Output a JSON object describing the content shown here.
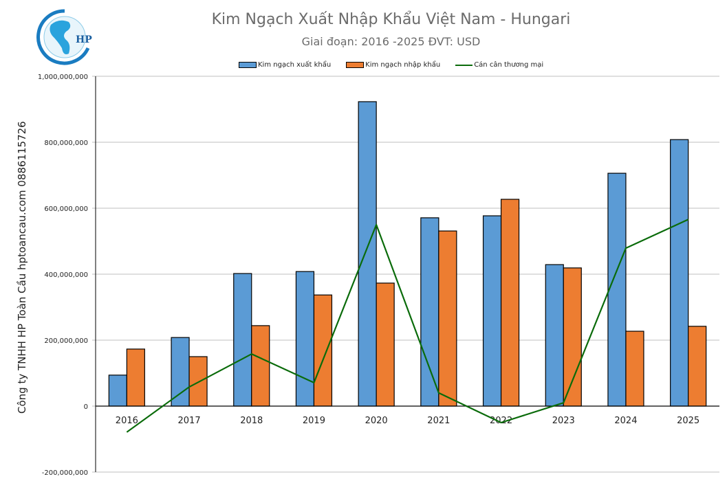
{
  "header": {
    "title": "Kim Ngạch Xuất Nhập Khẩu Việt Nam - Hungari",
    "subtitle": "Giai đoạn: 2016 -2025  ĐVT: USD",
    "logo_text": "HP"
  },
  "side_label": "Công ty TNHH HP Toàn Cầu hptoancau.com 0886115726",
  "legend": [
    {
      "label": "Kim ngạch xuất khẩu",
      "color": "#5b9bd5",
      "kind": "bar"
    },
    {
      "label": "Kim ngạch nhập khẩu",
      "color": "#ed7d31",
      "kind": "bar"
    },
    {
      "label": "Cán cân thương mại",
      "color": "#0a6b0a",
      "kind": "line"
    }
  ],
  "chart_data": {
    "type": "bar",
    "title": "Kim Ngạch Xuất Nhập Khẩu Việt Nam - Hungari",
    "subtitle": "Giai đoạn: 2016 -2025  ĐVT: USD",
    "xlabel": "",
    "ylabel": "Công ty TNHH HP Toàn Cầu hptoancau.com 0886115726",
    "ylim": [
      -200000000,
      1000000000
    ],
    "yticks": [
      -200000000,
      0,
      200000000,
      400000000,
      600000000,
      800000000,
      1000000000
    ],
    "ytick_labels": [
      "-200,000,000",
      "0",
      "200,000,000",
      "400,000,000",
      "600,000,000",
      "800,000,000",
      "1,000,000,000"
    ],
    "grid": true,
    "legend_position": "top",
    "categories": [
      "2016",
      "2017",
      "2018",
      "2019",
      "2020",
      "2021",
      "2022",
      "2023",
      "2024",
      "2025"
    ],
    "series": [
      {
        "name": "Kim ngạch xuất khẩu",
        "type": "bar",
        "color": "#5b9bd5",
        "values": [
          94000000,
          208000000,
          402000000,
          408000000,
          923000000,
          571000000,
          577000000,
          429000000,
          706000000,
          808000000
        ]
      },
      {
        "name": "Kim ngạch nhập khẩu",
        "type": "bar",
        "color": "#ed7d31",
        "values": [
          173000000,
          150000000,
          244000000,
          337000000,
          373000000,
          531000000,
          627000000,
          419000000,
          227000000,
          242000000
        ]
      },
      {
        "name": "Cán cân thương mại",
        "type": "line",
        "color": "#0a6b0a",
        "values": [
          -79000000,
          58000000,
          158000000,
          71000000,
          550000000,
          40000000,
          -50000000,
          10000000,
          479000000,
          566000000
        ]
      }
    ]
  }
}
